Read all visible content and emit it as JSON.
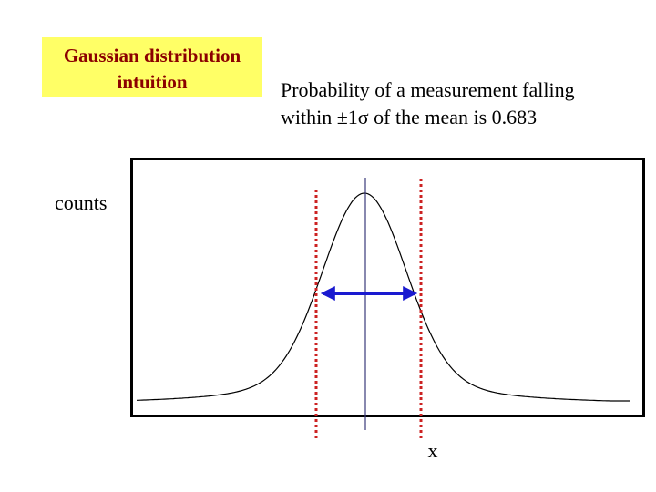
{
  "title": {
    "lines": [
      "Gaussian distribution",
      "intuition"
    ]
  },
  "statement": {
    "lines": [
      "Probability of a measurement falling",
      "within ±1σ of the mean is 0.683"
    ]
  },
  "y_label": "counts",
  "x_label": "x"
}
